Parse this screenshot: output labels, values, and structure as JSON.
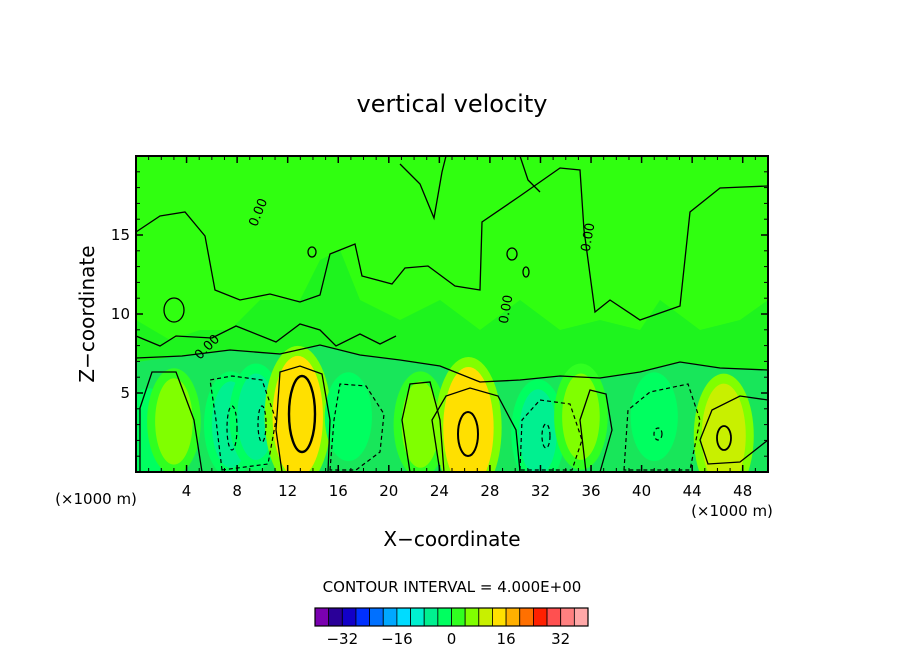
{
  "chart_data": {
    "type": "heatmap",
    "title": "vertical velocity",
    "xlabel": "X−coordinate",
    "ylabel": "Z−coordinate",
    "x_units": "(×1000 m)",
    "z_units": "(×1000 m)",
    "xlim": [
      0,
      50
    ],
    "ylim": [
      0,
      20
    ],
    "x_ticks": [
      "4",
      "8",
      "12",
      "16",
      "20",
      "24",
      "28",
      "32",
      "36",
      "40",
      "44",
      "48"
    ],
    "y_ticks": [
      "5",
      "10",
      "15"
    ],
    "contour_interval_text": "CONTOUR INTERVAL = 4.000E+00",
    "contour_labels": [
      "0.00",
      "0.00",
      "0.00",
      "0.00"
    ],
    "legend": {
      "colors": [
        "#7a00b0",
        "#2a0098",
        "#1200c8",
        "#0030ff",
        "#0070ff",
        "#00a8ff",
        "#00dcff",
        "#00f0d0",
        "#00f090",
        "#00ff60",
        "#30ff20",
        "#80ff00",
        "#c8f000",
        "#ffe000",
        "#ffb000",
        "#ff7000",
        "#ff2000",
        "#ff5050",
        "#ff8080",
        "#ffa8a8"
      ],
      "tick_labels": [
        "−32",
        "−16",
        "0",
        "16",
        "32"
      ]
    },
    "field": {
      "background_value": 0,
      "upper_layer_value": 2,
      "cells": [
        {
          "x": 1.0,
          "z": 2.5,
          "value": -2
        },
        {
          "x": 3.0,
          "z": 3.2,
          "value": 6
        },
        {
          "x": 7.5,
          "z": 3.0,
          "value": -6
        },
        {
          "x": 9.5,
          "z": 3.5,
          "value": -6
        },
        {
          "x": 12.8,
          "z": 3.5,
          "value": 14
        },
        {
          "x": 16.8,
          "z": 3.5,
          "value": -2
        },
        {
          "x": 22.5,
          "z": 3.0,
          "value": 6
        },
        {
          "x": 26.3,
          "z": 2.8,
          "value": 14
        },
        {
          "x": 31.8,
          "z": 2.5,
          "value": -6
        },
        {
          "x": 35.2,
          "z": 3.5,
          "value": 6
        },
        {
          "x": 41.0,
          "z": 3.5,
          "value": -2
        },
        {
          "x": 46.5,
          "z": 2.3,
          "value": 10
        }
      ]
    }
  }
}
